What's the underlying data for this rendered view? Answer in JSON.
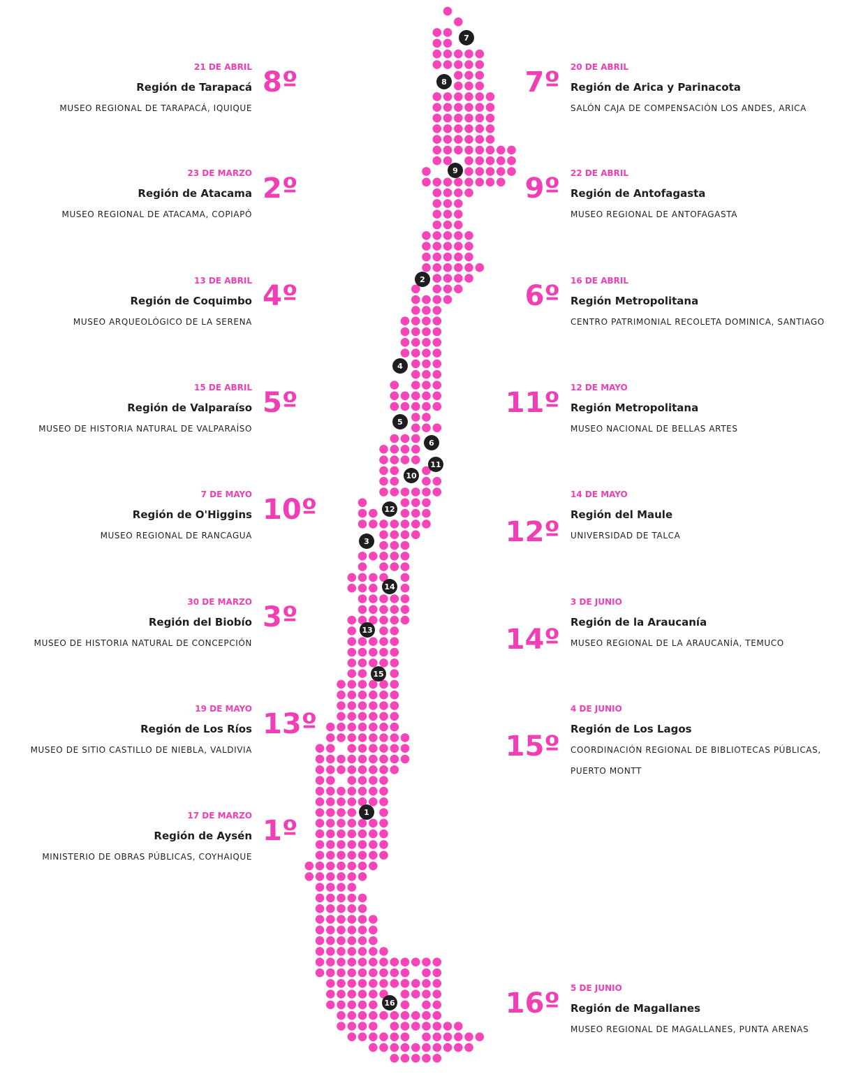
{
  "markers": [
    "7",
    "8",
    "9",
    "2",
    "4",
    "5",
    "6",
    "11",
    "10",
    "12",
    "3",
    "14",
    "13",
    "15",
    "1",
    "16"
  ],
  "left_events": [
    {
      "date": "21 de abril",
      "ordinal": "8º",
      "region": "Región de Tarapacá",
      "venue": [
        "Museo Regional de Tarapacá, Iquique"
      ]
    },
    {
      "date": "23 de marzo",
      "ordinal": "2º",
      "region": "Región de Atacama",
      "venue": [
        "Museo Regional de Atacama, Copiapó"
      ]
    },
    {
      "date": "13 de abril",
      "ordinal": "4º",
      "region": "Región de Coquimbo",
      "venue": [
        "Museo Arqueológico de La Serena"
      ]
    },
    {
      "date": "15 de abril",
      "ordinal": "5º",
      "region": "Región de Valparaíso",
      "venue": [
        "Museo de Historia Natural de Valparaíso"
      ]
    },
    {
      "date": "7 de mayo",
      "ordinal": "10º",
      "region": "Región de O'Higgins",
      "venue": [
        "Museo Regional de Rancagua"
      ]
    },
    {
      "date": "30 de marzo",
      "ordinal": "3º",
      "region": "Región del Biobío",
      "venue": [
        "Museo de Historia Natural de Concepción"
      ]
    },
    {
      "date": "19 de mayo",
      "ordinal": "13º",
      "region": "Región de Los Ríos",
      "venue": [
        "Museo de Sitio Castillo de Niebla, Valdivia"
      ]
    },
    {
      "date": "17 de marzo",
      "ordinal": "1º",
      "region": "Región de Aysén",
      "venue": [
        "Ministerio de Obras Públicas, Coyhaique"
      ]
    }
  ],
  "right_events": [
    {
      "date": "20 de abril",
      "ordinal": "7º",
      "region": "Región de Arica y Parinacota",
      "venue": [
        "Salón Caja de Compensación Los Andes, Arica"
      ]
    },
    {
      "date": "22 de abril",
      "ordinal": "9º",
      "region": "Región de Antofagasta",
      "venue": [
        "Museo Regional de Antofagasta"
      ]
    },
    {
      "date": "16 de abril",
      "ordinal": "6º",
      "region": "Región Metropolitana",
      "venue": [
        "Centro Patrimonial Recoleta Dominica, Santiago"
      ]
    },
    {
      "date": "12 de mayo",
      "ordinal": "11º",
      "region": "Región Metropolitana",
      "venue": [
        "Museo Nacional de Bellas Artes"
      ]
    },
    {
      "date": "14 de mayo",
      "ordinal": "12º",
      "region": "Región del Maule",
      "venue": [
        "Universidad de Talca"
      ]
    },
    {
      "date": "3 de junio",
      "ordinal": "14º",
      "region": "Región de la Araucanía",
      "venue": [
        "Museo Regional de la Araucanía, Temuco"
      ]
    },
    {
      "date": "4 de junio",
      "ordinal": "15º",
      "region": "Región de Los Lagos",
      "venue": [
        "Coordinación Regional de Bibliotecas Públicas,",
        "Puerto Montt"
      ]
    },
    {
      "date": "5 de junio",
      "ordinal": "16º",
      "region": "Región de Magallanes",
      "venue": [
        "Museo Regional de Magallanes, Punta Arenas"
      ]
    }
  ]
}
